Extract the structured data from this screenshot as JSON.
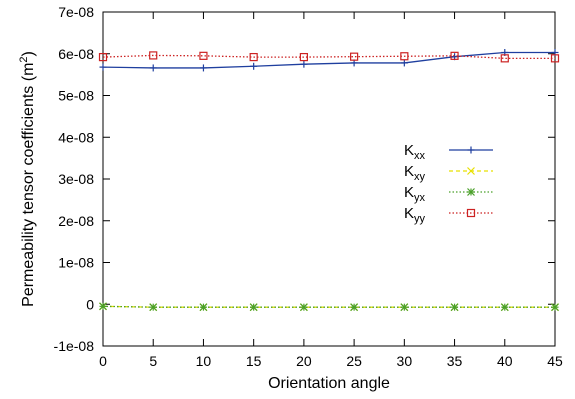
{
  "chart_data": {
    "type": "line",
    "title": "",
    "xlabel": "Orientation angle",
    "ylabel_parts": [
      "Permeability tensor coefficients (m",
      "2",
      ")"
    ],
    "xlim": [
      0,
      45
    ],
    "ylim": [
      -1e-08,
      7e-08
    ],
    "x_ticks": [
      0,
      5,
      10,
      15,
      20,
      25,
      30,
      35,
      40,
      45
    ],
    "x_tick_labels": [
      "0",
      "5",
      "10",
      "15",
      "20",
      "25",
      "30",
      "35",
      "40",
      "45"
    ],
    "y_ticks": [
      -1e-08,
      0,
      1e-08,
      2e-08,
      3e-08,
      4e-08,
      5e-08,
      6e-08,
      7e-08
    ],
    "y_tick_labels": [
      "-1e-08",
      "0",
      "1e-08",
      "2e-08",
      "3e-08",
      "4e-08",
      "5e-08",
      "6e-08",
      "7e-08"
    ],
    "grid": false,
    "legend_position": "right",
    "x": [
      0,
      5,
      10,
      15,
      20,
      25,
      30,
      35,
      40,
      45
    ],
    "series": [
      {
        "name": "Kxx",
        "label_main": "K",
        "label_sub": "xx",
        "color": "#1f3f9f",
        "marker": "plus",
        "dash": "solid",
        "values": [
          5.68e-08,
          5.66e-08,
          5.66e-08,
          5.7e-08,
          5.75e-08,
          5.78e-08,
          5.78e-08,
          5.93e-08,
          6.03e-08,
          6.03e-08
        ]
      },
      {
        "name": "Kxy",
        "label_main": "K",
        "label_sub": "xy",
        "color": "#e8e000",
        "marker": "x",
        "dash": "dashed",
        "values": [
          -5e-10,
          -7e-10,
          -7e-10,
          -7e-10,
          -7e-10,
          -7e-10,
          -7e-10,
          -7e-10,
          -7e-10,
          -7e-10
        ]
      },
      {
        "name": "Kyx",
        "label_main": "K",
        "label_sub": "yx",
        "color": "#4aa02a",
        "marker": "star",
        "dash": "dotted",
        "values": [
          -5e-10,
          -7e-10,
          -7e-10,
          -7e-10,
          -7e-10,
          -7e-10,
          -7e-10,
          -7e-10,
          -7e-10,
          -7e-10
        ]
      },
      {
        "name": "Kyy",
        "label_main": "K",
        "label_sub": "yy",
        "color": "#cc2222",
        "marker": "square",
        "dash": "dotted",
        "values": [
          5.92e-08,
          5.96e-08,
          5.95e-08,
          5.92e-08,
          5.92e-08,
          5.93e-08,
          5.94e-08,
          5.95e-08,
          5.89e-08,
          5.89e-08
        ]
      }
    ]
  }
}
